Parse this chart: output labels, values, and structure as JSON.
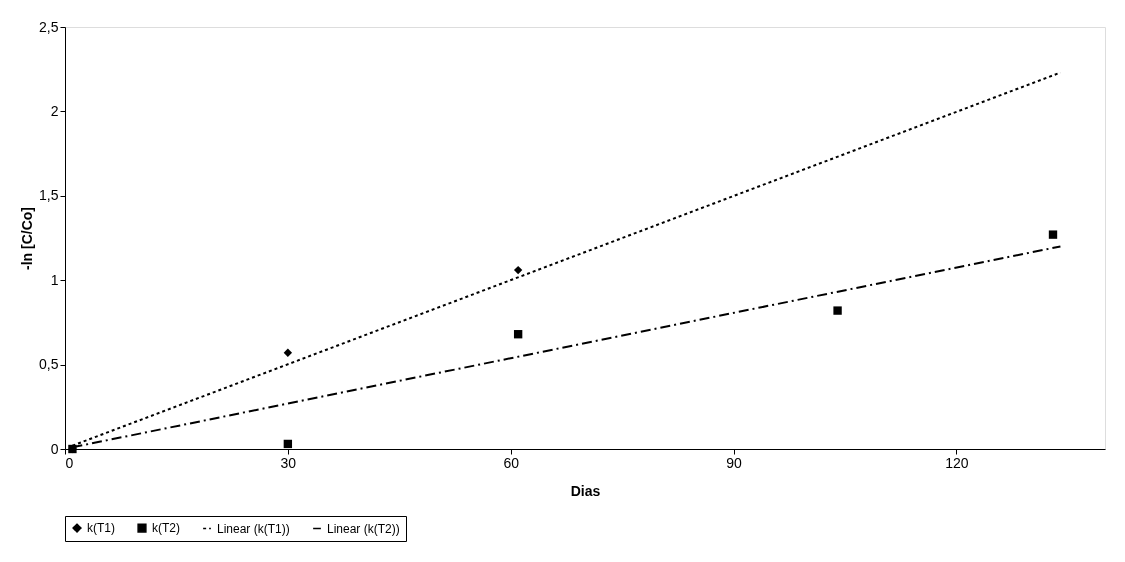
{
  "chart_data": {
    "type": "scatter",
    "xlabel": "Dias",
    "ylabel": "-ln [C/Co]",
    "xlim": [
      0,
      140
    ],
    "xticks": [
      0,
      30,
      60,
      90,
      120
    ],
    "ylim": [
      0,
      2.5
    ],
    "yticks": [
      0,
      {
        "value": 0.5,
        "label": "0,5"
      },
      1,
      {
        "value": 1.5,
        "label": "1,5"
      },
      2,
      {
        "value": 2.5,
        "label": "2,5"
      }
    ],
    "grid": false,
    "legend": "bottom",
    "series": [
      {
        "name": "k(T1)",
        "marker": "diamond",
        "color": "#000000",
        "x": [
          1,
          30,
          61
        ],
        "values": [
          0,
          0.57,
          1.06
        ]
      },
      {
        "name": "k(T2)",
        "marker": "square",
        "color": "#000000",
        "x": [
          1,
          30,
          61,
          104,
          133
        ],
        "values": [
          0,
          0.03,
          0.68,
          0.82,
          1.27
        ]
      },
      {
        "name": "Linear (k(T1))",
        "type": "line",
        "line_style": "dotted",
        "color": "#000000",
        "x": [
          1,
          134
        ],
        "values": [
          0.02,
          2.23
        ]
      },
      {
        "name": "Linear (k(T2))",
        "type": "line",
        "line_style": "dashed",
        "color": "#000000",
        "x": [
          1,
          134
        ],
        "values": [
          0.01,
          1.2
        ]
      }
    ]
  }
}
